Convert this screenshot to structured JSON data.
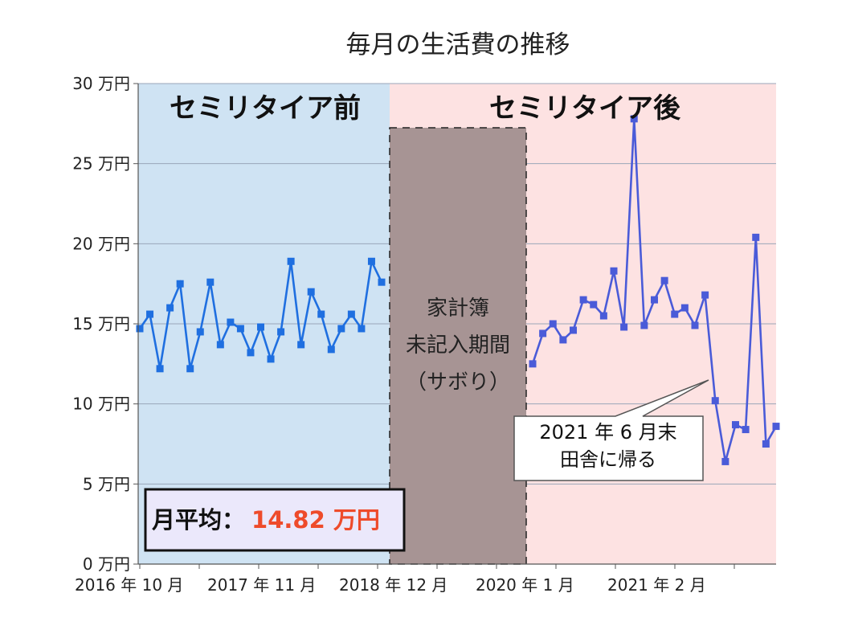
{
  "chart_data": {
    "type": "line",
    "title": "毎月の生活費の推移",
    "y_unit": "万円",
    "ylim": [
      0,
      30
    ],
    "y_ticks": [
      0,
      5,
      10,
      15,
      20,
      25,
      30
    ],
    "y_tick_labels": [
      "0 万円",
      "5 万円",
      "10 万円",
      "15 万円",
      "20 万円",
      "25 万円",
      "30 万円"
    ],
    "x_tick_labels": [
      "2016 年 10 月",
      "2017 年 11 月",
      "2018 年 12 月",
      "2020 年 1 月",
      "2021 年 2 月"
    ],
    "grid": true,
    "series": [
      {
        "segments": [
          [
            14.7,
            15.6,
            12.2,
            16.0,
            17.5,
            12.2,
            14.5,
            17.6,
            13.7,
            15.1,
            14.7,
            13.2,
            14.8,
            12.8,
            14.5,
            18.9,
            13.7,
            17.0,
            15.6,
            13.4,
            14.7,
            15.6,
            14.7,
            18.9,
            17.6
          ],
          [
            12.5,
            14.4,
            15.0,
            14.0,
            14.6,
            16.5,
            16.2,
            15.5,
            18.3,
            14.8,
            27.8,
            14.9,
            16.5,
            17.7,
            15.6,
            16.0,
            14.9,
            16.8,
            10.2,
            6.4,
            8.7,
            8.4,
            20.4,
            7.5,
            8.6
          ]
        ],
        "color_before": "#1f6fe0",
        "color_after": "#4a5bd8"
      }
    ],
    "regions": {
      "before_label": "セミリタイア前",
      "after_label": "セミリタイア後",
      "gap_label_lines": [
        "家計簿",
        "未記入期間",
        "（サボり）"
      ]
    },
    "average_box": {
      "label": "月平均：",
      "value": "14.82 万円"
    },
    "callout_lines": [
      "2021 年 6 月末",
      "田舎に帰る"
    ],
    "colors": {
      "before_bg": "#cfe3f3",
      "after_bg": "#fde2e2",
      "gap_bg": "#a79494",
      "average_value": "#ee4b2b",
      "average_bg": "#ebe8fb"
    }
  }
}
